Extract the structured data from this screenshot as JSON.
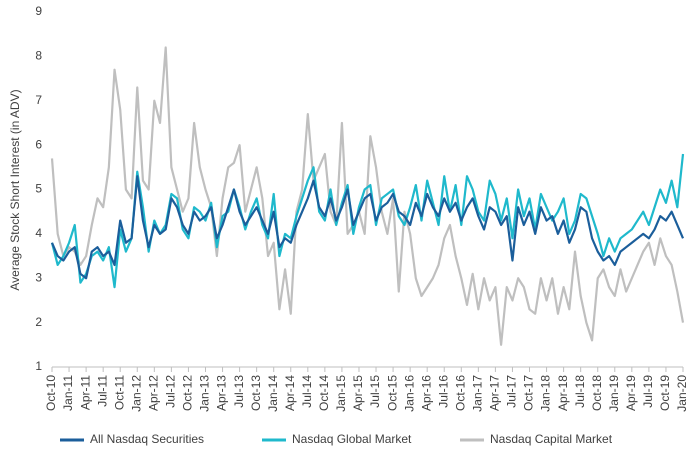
{
  "chart_data": {
    "type": "line",
    "y_label": "Average Stock Short Interest (in ADV)",
    "categories": [
      "Oct-10",
      null,
      null,
      "Jan-11",
      null,
      null,
      "Apr-11",
      null,
      null,
      "Jul-11",
      null,
      null,
      "Oct-11",
      null,
      null,
      "Jan-12",
      null,
      null,
      "Apr-12",
      null,
      null,
      "Jul-12",
      null,
      null,
      "Oct-12",
      null,
      null,
      "Jan-13",
      null,
      null,
      "Apr-13",
      null,
      null,
      "Jul-13",
      null,
      null,
      "Oct-13",
      null,
      null,
      "Jan-14",
      null,
      null,
      "Apr-14",
      null,
      null,
      "Jul-14",
      null,
      null,
      "Oct-14",
      null,
      null,
      "Jan-15",
      null,
      null,
      "Apr-15",
      null,
      null,
      "Jul-15",
      null,
      null,
      "Oct-15",
      null,
      null,
      "Jan-16",
      null,
      null,
      "Apr-16",
      null,
      null,
      "Jul-16",
      null,
      null,
      "Oct-16",
      null,
      null,
      "Jan-17",
      null,
      null,
      "Apr-17",
      null,
      null,
      "Jul-17",
      null,
      null,
      "Oct-17",
      null,
      null,
      "Jan-18",
      null,
      null,
      "Apr-18",
      null,
      null,
      "Jul-18",
      null,
      null,
      "Oct-18",
      null,
      null,
      "Jan-19",
      null,
      null,
      "Apr-19",
      null,
      null,
      "Jul-19",
      null,
      null,
      "Oct-19",
      null,
      null,
      "Jan-20"
    ],
    "series": [
      {
        "name": "All Nasdaq Securities",
        "color": "#1b5e9b",
        "values": [
          3.8,
          3.5,
          3.4,
          3.6,
          3.7,
          3.1,
          3.0,
          3.6,
          3.7,
          3.5,
          3.6,
          3.3,
          4.3,
          3.8,
          3.9,
          5.3,
          4.3,
          3.7,
          4.2,
          4.0,
          4.1,
          4.8,
          4.6,
          4.2,
          4.0,
          4.5,
          4.3,
          4.4,
          4.6,
          3.9,
          4.2,
          4.6,
          5.0,
          4.5,
          4.2,
          4.4,
          4.6,
          4.3,
          4.0,
          4.5,
          3.7,
          3.9,
          3.8,
          4.2,
          4.5,
          4.8,
          5.2,
          4.6,
          4.4,
          4.8,
          4.3,
          4.6,
          5.0,
          4.2,
          4.5,
          4.8,
          4.9,
          4.3,
          4.6,
          4.7,
          4.9,
          4.5,
          4.4,
          4.2,
          4.7,
          4.4,
          4.9,
          4.6,
          4.4,
          4.8,
          4.5,
          4.7,
          4.3,
          4.6,
          4.8,
          4.4,
          4.1,
          4.6,
          4.5,
          4.2,
          4.4,
          3.4,
          4.6,
          4.2,
          4.5,
          4.0,
          4.6,
          4.3,
          4.4,
          4.0,
          4.3,
          3.8,
          4.1,
          4.6,
          4.5,
          3.9,
          3.6,
          3.4,
          3.5,
          3.3,
          3.6,
          3.7,
          3.8,
          3.9,
          4.0,
          3.9,
          4.1,
          4.4,
          4.3,
          4.5,
          4.2,
          3.9
        ]
      },
      {
        "name": "Nasdaq Global Market",
        "color": "#1fb9cc",
        "values": [
          3.8,
          3.3,
          3.5,
          3.8,
          4.2,
          2.9,
          3.1,
          3.5,
          3.6,
          3.4,
          3.7,
          2.8,
          4.1,
          3.6,
          3.9,
          5.4,
          4.6,
          3.6,
          4.3,
          4.0,
          4.2,
          4.9,
          4.8,
          4.1,
          3.9,
          4.6,
          4.5,
          4.3,
          4.7,
          3.7,
          4.4,
          4.5,
          5.0,
          4.6,
          4.1,
          4.5,
          4.8,
          4.2,
          3.9,
          4.9,
          3.5,
          4.0,
          3.9,
          4.4,
          4.8,
          5.2,
          5.5,
          4.5,
          4.3,
          5.0,
          4.2,
          4.7,
          5.1,
          4.0,
          4.6,
          5.0,
          5.1,
          4.2,
          4.8,
          4.9,
          5.0,
          4.4,
          4.2,
          4.6,
          5.1,
          4.3,
          5.2,
          4.7,
          4.2,
          5.3,
          4.5,
          5.1,
          4.2,
          5.3,
          5.0,
          4.5,
          4.3,
          5.2,
          4.9,
          4.3,
          4.8,
          3.9,
          5.0,
          4.4,
          4.8,
          4.1,
          4.9,
          4.6,
          4.3,
          4.5,
          4.8,
          4.0,
          4.3,
          4.9,
          4.8,
          4.4,
          4.0,
          3.5,
          3.9,
          3.6,
          3.9,
          4.0,
          4.1,
          4.3,
          4.5,
          4.2,
          4.6,
          5.0,
          4.7,
          5.2,
          4.6,
          5.8
        ]
      },
      {
        "name": "Nasdaq Capital Market",
        "color": "#bfbfbf",
        "values": [
          5.7,
          4.0,
          3.5,
          3.7,
          3.6,
          3.3,
          3.5,
          4.2,
          4.8,
          4.6,
          5.5,
          7.7,
          6.8,
          5.0,
          4.8,
          7.3,
          5.2,
          5.0,
          7.0,
          6.5,
          8.2,
          5.5,
          5.0,
          4.5,
          4.8,
          6.5,
          5.5,
          5.0,
          4.6,
          3.5,
          4.8,
          5.5,
          5.6,
          6.0,
          4.5,
          5.0,
          5.5,
          4.8,
          3.5,
          3.8,
          2.3,
          3.2,
          2.2,
          4.5,
          5.0,
          6.7,
          5.2,
          5.5,
          5.8,
          4.5,
          4.2,
          6.5,
          4.0,
          4.2,
          4.5,
          4.0,
          6.2,
          5.5,
          4.5,
          4.0,
          4.8,
          2.7,
          4.5,
          4.0,
          3.0,
          2.6,
          2.8,
          3.0,
          3.3,
          3.9,
          4.2,
          3.5,
          3.0,
          2.4,
          3.1,
          2.3,
          3.0,
          2.5,
          2.8,
          1.5,
          2.8,
          2.5,
          3.0,
          2.8,
          2.3,
          2.2,
          3.0,
          2.5,
          3.0,
          2.2,
          2.8,
          2.3,
          3.6,
          2.6,
          2.0,
          1.6,
          3.0,
          3.2,
          2.8,
          2.6,
          3.2,
          2.7,
          3.0,
          3.3,
          3.6,
          3.8,
          3.3,
          3.9,
          3.5,
          3.3,
          2.7,
          2.0
        ]
      }
    ],
    "ylim": [
      1,
      9
    ],
    "yticks": [
      1,
      2,
      3,
      4,
      5,
      6,
      7,
      8,
      9
    ],
    "grid": false,
    "legend": "bottom"
  }
}
